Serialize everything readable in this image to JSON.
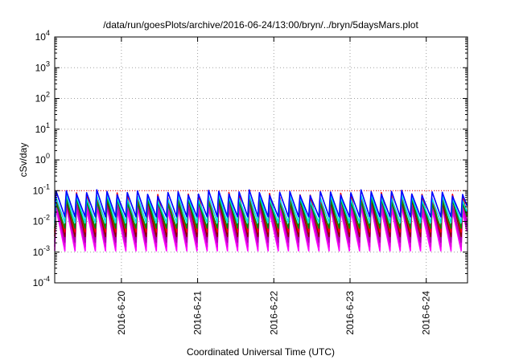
{
  "chart_data": {
    "type": "line",
    "title": "/data/run/goesPlots/archive/2016-06-24/13:00/bryn/../bryn/5daysMars.plot",
    "xlabel": "Coordinated Universal Time (UTC)",
    "ylabel": "cSv/day",
    "yscale": "log",
    "ylim": [
      0.0001,
      10000
    ],
    "xlim": [
      "2016-06-19T03:00",
      "2016-06-24T13:00"
    ],
    "y_ticks": [
      {
        "base": "10",
        "exp": "-4",
        "value": 0.0001
      },
      {
        "base": "10",
        "exp": "-3",
        "value": 0.001
      },
      {
        "base": "10",
        "exp": "-2",
        "value": 0.01
      },
      {
        "base": "10",
        "exp": "-1",
        "value": 0.1
      },
      {
        "base": "10",
        "exp": "0",
        "value": 1
      },
      {
        "base": "10",
        "exp": "1",
        "value": 10
      },
      {
        "base": "10",
        "exp": "2",
        "value": 100
      },
      {
        "base": "10",
        "exp": "3",
        "value": 1000
      },
      {
        "base": "10",
        "exp": "4",
        "value": 10000
      }
    ],
    "x_ticks": [
      {
        "label": "2016-6-20",
        "value": "2016-06-20T00:00"
      },
      {
        "label": "2016-6-21",
        "value": "2016-06-21T00:00"
      },
      {
        "label": "2016-6-22",
        "value": "2016-06-22T00:00"
      },
      {
        "label": "2016-6-23",
        "value": "2016-06-23T00:00"
      },
      {
        "label": "2016-6-24",
        "value": "2016-06-24T00:00"
      }
    ],
    "grid": true,
    "reference_line": {
      "value": 0.1,
      "color": "#ff0000",
      "style": "dotted"
    },
    "cycle_hours": 3.2,
    "series": [
      {
        "color": "#ff00ff",
        "peak": 0.028,
        "trough": 0.0011
      },
      {
        "color": "#e000e0",
        "peak": 0.035,
        "trough": 0.0015
      },
      {
        "color": "#b000b0",
        "peak": 0.045,
        "trough": 0.0021
      },
      {
        "color": "#8b0000",
        "peak": 0.06,
        "trough": 0.0032
      },
      {
        "color": "#ff0000",
        "peak": 0.075,
        "trough": 0.0045
      },
      {
        "color": "#008b00",
        "peak": 0.05,
        "trough": 0.006
      },
      {
        "color": "#00e0e0",
        "peak": 0.065,
        "trough": 0.009
      },
      {
        "color": "#0000ff",
        "peak": 0.09,
        "trough": 0.014
      }
    ]
  }
}
